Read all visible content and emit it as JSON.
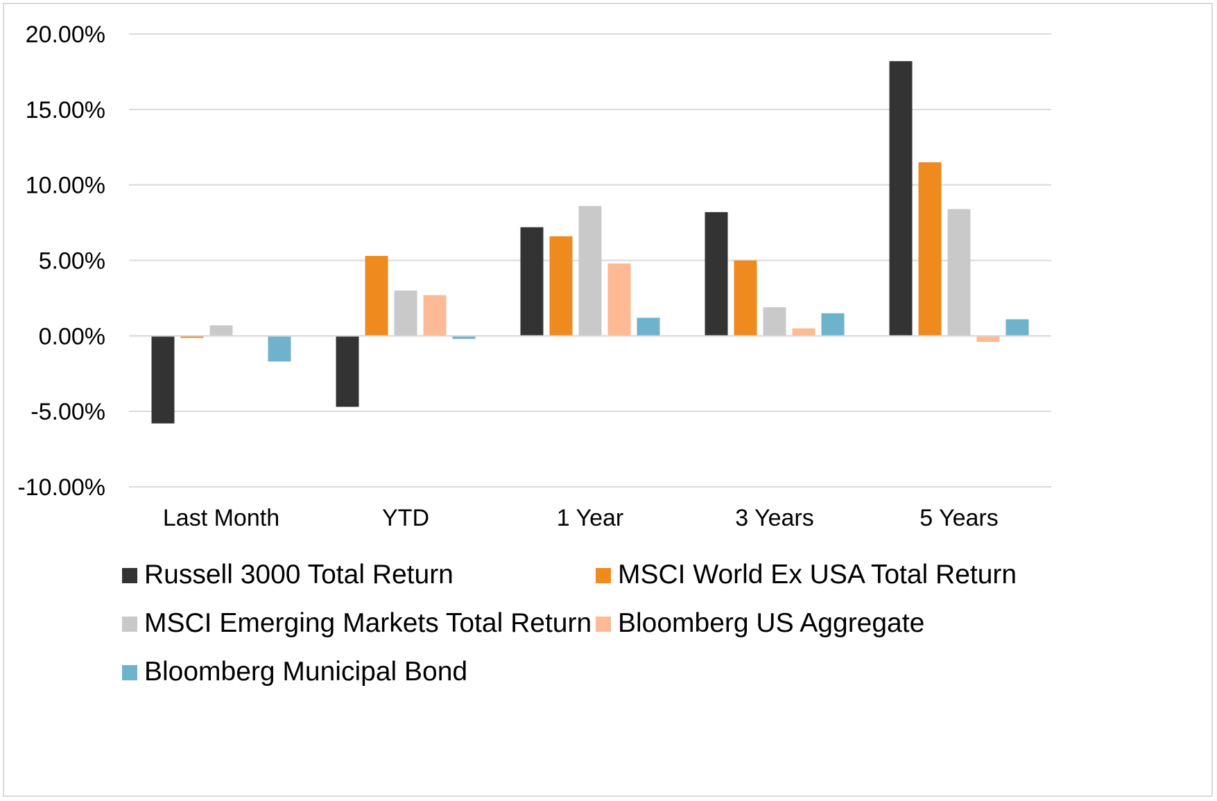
{
  "chart_data": {
    "type": "bar",
    "title": "",
    "xlabel": "",
    "ylabel": "",
    "categories": [
      "Last Month",
      "YTD",
      "1 Year",
      "3 Years",
      "5 Years"
    ],
    "ylim": [
      -10,
      20
    ],
    "yticks": [
      20,
      15,
      10,
      5,
      0,
      -5,
      -10
    ],
    "ytick_labels": [
      "20.00%",
      "15.00%",
      "10.00%",
      "5.00%",
      "0.00%",
      "-5.00%",
      "-10.00%"
    ],
    "grid": true,
    "legend_position": "bottom",
    "series": [
      {
        "name": "Russell 3000 Total Return",
        "color": "#333333",
        "values": [
          -5.8,
          -4.7,
          7.2,
          8.2,
          18.2
        ]
      },
      {
        "name": "MSCI World Ex USA Total Return",
        "color": "#ee8a1e",
        "values": [
          -0.1,
          5.3,
          6.6,
          5.0,
          11.5
        ]
      },
      {
        "name": "MSCI Emerging Markets Total Return",
        "color": "#c9c9c9",
        "values": [
          0.7,
          3.0,
          8.6,
          1.9,
          8.4
        ]
      },
      {
        "name": "Bloomberg US Aggregate",
        "color": "#fdba94",
        "values": [
          0.0,
          2.7,
          4.8,
          0.5,
          -0.4
        ]
      },
      {
        "name": "Bloomberg Municipal Bond",
        "color": "#6fb2cc",
        "values": [
          -1.7,
          -0.2,
          1.2,
          1.5,
          1.1
        ]
      }
    ]
  }
}
